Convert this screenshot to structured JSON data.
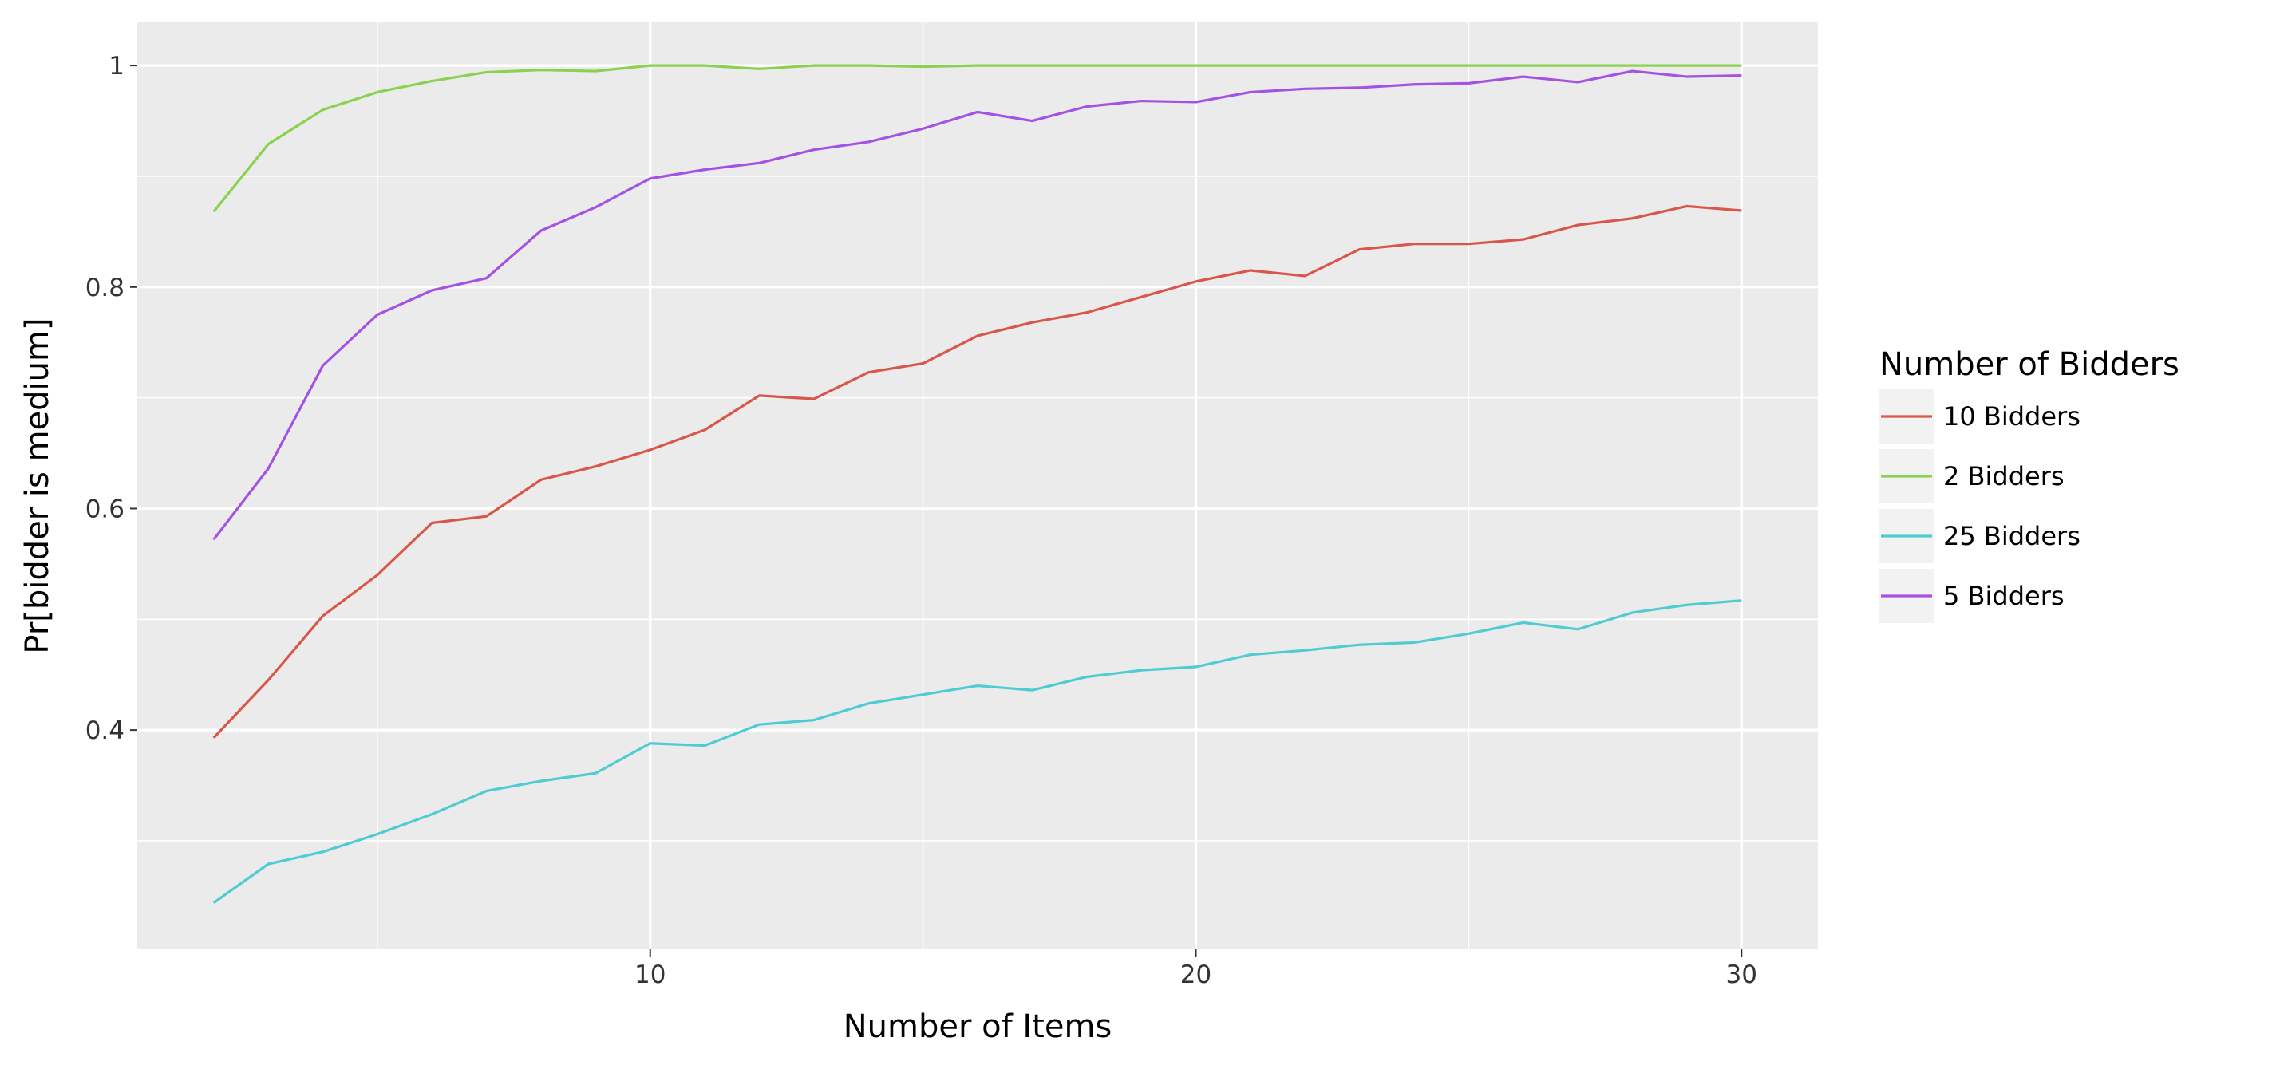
{
  "chart_data": {
    "type": "line",
    "title": "",
    "xlabel": "Number of Items",
    "ylabel": "Pr[bidder is medium]",
    "xlim": [
      0.6,
      31.4
    ],
    "ylim": [
      0.202,
      1.039
    ],
    "x_ticks": [
      10,
      20,
      30
    ],
    "x_minor_ticks": [
      5,
      15,
      25
    ],
    "y_ticks": [
      0.4,
      0.6,
      0.8,
      1.0
    ],
    "y_tick_labels": [
      "0.4",
      "0.6",
      "0.8",
      "1"
    ],
    "y_minor_ticks": [
      0.3,
      0.5,
      0.7,
      0.9
    ],
    "grid": true,
    "background": "#EBEBEB",
    "legend": {
      "title": "Number of Bidders",
      "position": "right"
    },
    "x": [
      2,
      3,
      4,
      5,
      6,
      7,
      8,
      9,
      10,
      11,
      12,
      13,
      14,
      15,
      16,
      17,
      18,
      19,
      20,
      21,
      22,
      23,
      24,
      25,
      26,
      27,
      28,
      29,
      30
    ],
    "series": [
      {
        "name": "10 Bidders",
        "color": "#D9574A",
        "values": [
          0.393,
          0.445,
          0.503,
          0.54,
          0.587,
          0.593,
          0.626,
          0.638,
          0.653,
          0.671,
          0.702,
          0.699,
          0.723,
          0.731,
          0.756,
          0.768,
          0.777,
          0.791,
          0.805,
          0.815,
          0.81,
          0.834,
          0.839,
          0.839,
          0.843,
          0.856,
          0.862,
          0.873,
          0.869
        ]
      },
      {
        "name": "2 Bidders",
        "color": "#8AD14F",
        "values": [
          0.868,
          0.929,
          0.96,
          0.976,
          0.986,
          0.994,
          0.996,
          0.995,
          1.0,
          1.0,
          0.997,
          1.0,
          1.0,
          0.999,
          1.0,
          1.0,
          1.0,
          1.0,
          1.0,
          1.0,
          1.0,
          1.0,
          1.0,
          1.0,
          1.0,
          1.0,
          1.0,
          1.0,
          1.0
        ]
      },
      {
        "name": "25 Bidders",
        "color": "#4FCBD2",
        "values": [
          0.244,
          0.279,
          0.29,
          0.306,
          0.324,
          0.345,
          0.354,
          0.361,
          0.388,
          0.386,
          0.405,
          0.409,
          0.424,
          0.432,
          0.44,
          0.436,
          0.448,
          0.454,
          0.457,
          0.468,
          0.472,
          0.477,
          0.479,
          0.487,
          0.497,
          0.491,
          0.506,
          0.513,
          0.517
        ]
      },
      {
        "name": "5 Bidders",
        "color": "#A452E3",
        "values": [
          0.572,
          0.636,
          0.729,
          0.775,
          0.797,
          0.808,
          0.851,
          0.872,
          0.898,
          0.906,
          0.912,
          0.924,
          0.931,
          0.943,
          0.958,
          0.95,
          0.963,
          0.968,
          0.967,
          0.976,
          0.979,
          0.98,
          0.983,
          0.984,
          0.99,
          0.985,
          0.995,
          0.99,
          0.991
        ]
      }
    ]
  }
}
